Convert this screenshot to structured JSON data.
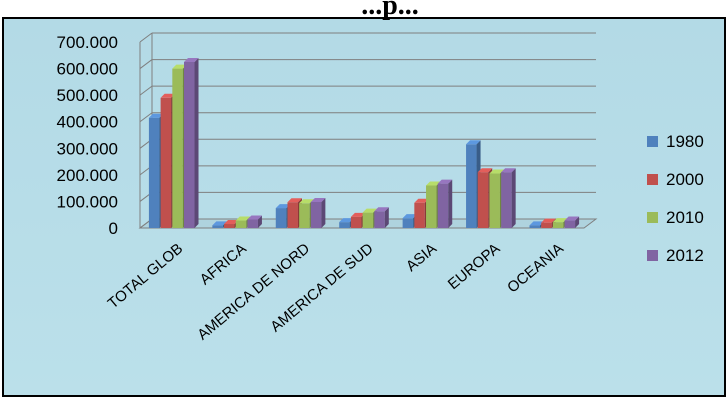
{
  "chart_data": {
    "type": "bar",
    "title": "...p...",
    "categories": [
      "TOTAL GLOB",
      "AFRICA",
      "AMERICA DE NORD",
      "AMERICA DE SUD",
      "ASIA",
      "EUROPA",
      "OCEANIA"
    ],
    "series": [
      {
        "name": "1980",
        "color": "#4F81BD",
        "values": [
          415000,
          10000,
          75000,
          22000,
          37000,
          315000,
          10000
        ]
      },
      {
        "name": "2000",
        "color": "#C0504D",
        "values": [
          490000,
          15000,
          97000,
          42000,
          95000,
          210000,
          20000
        ]
      },
      {
        "name": "2010",
        "color": "#9BBB59",
        "values": [
          600000,
          28000,
          93000,
          58000,
          160000,
          205000,
          22000
        ]
      },
      {
        "name": "2012",
        "color": "#8064A2",
        "values": [
          625000,
          32000,
          98000,
          63000,
          167000,
          210000,
          28000
        ]
      }
    ],
    "y_ticks": [
      "0",
      "100.000",
      "200.000",
      "300.000",
      "400.000",
      "500.000",
      "600.000",
      "700.000"
    ],
    "ylim": [
      0,
      700000
    ],
    "grid": true,
    "legend_position": "right",
    "background_color": "#B7DDE8"
  }
}
